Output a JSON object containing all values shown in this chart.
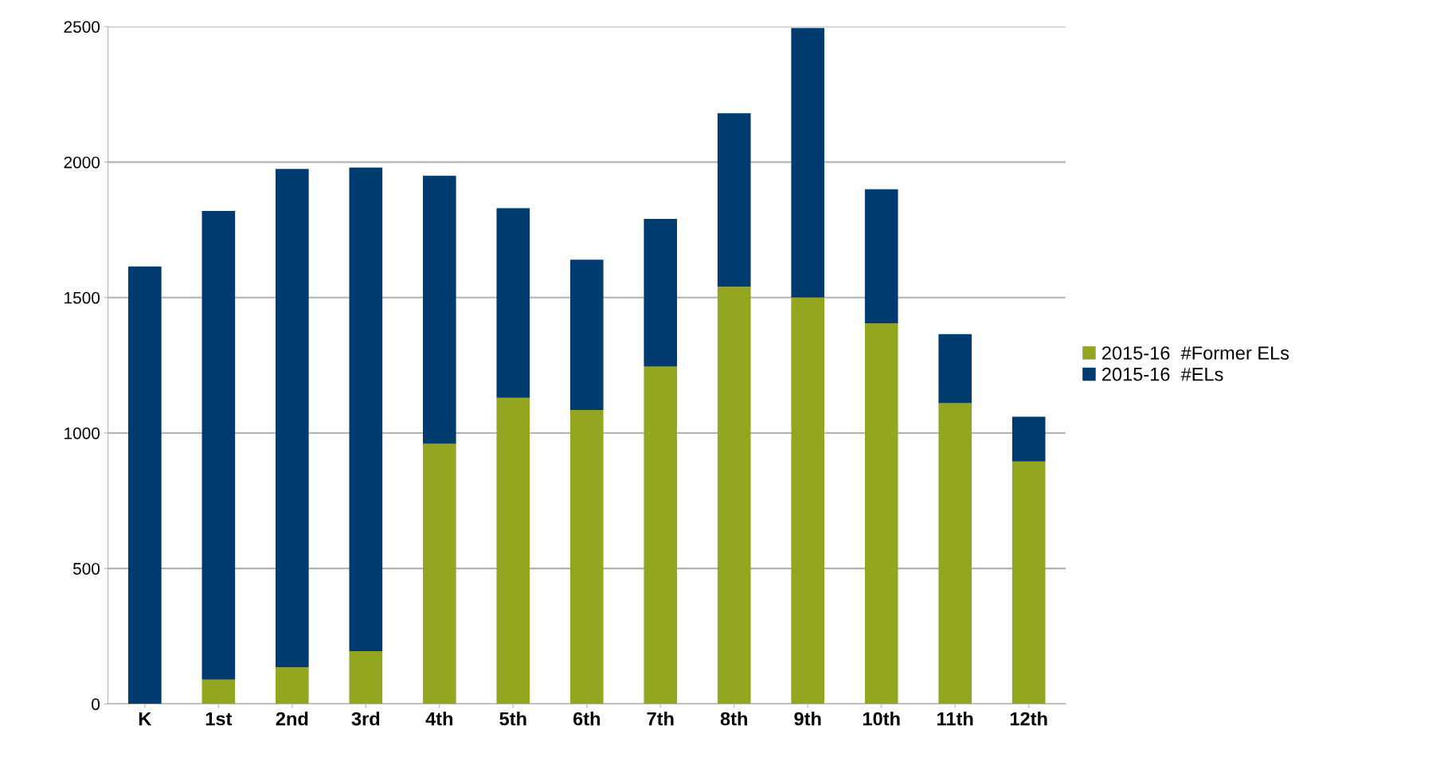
{
  "chart_data": {
    "type": "bar",
    "stacked": true,
    "categories": [
      "K",
      "1st",
      "2nd",
      "3rd",
      "4th",
      "5th",
      "6th",
      "7th",
      "8th",
      "9th",
      "10th",
      "11th",
      "12th"
    ],
    "series": [
      {
        "name": "2015-16  #Former ELs",
        "color": "#94a51f",
        "values": [
          0,
          90,
          135,
          195,
          960,
          1130,
          1085,
          1245,
          1540,
          1500,
          1405,
          1110,
          895
        ]
      },
      {
        "name": "2015-16  #ELs",
        "color": "#003b6f",
        "values": [
          1615,
          1730,
          1840,
          1785,
          990,
          700,
          555,
          545,
          640,
          995,
          495,
          255,
          165
        ]
      }
    ],
    "ylim": [
      0,
      2500
    ],
    "yticks": [
      0,
      500,
      1000,
      1500,
      2000,
      2500
    ],
    "grid": "y",
    "legend": "right"
  }
}
